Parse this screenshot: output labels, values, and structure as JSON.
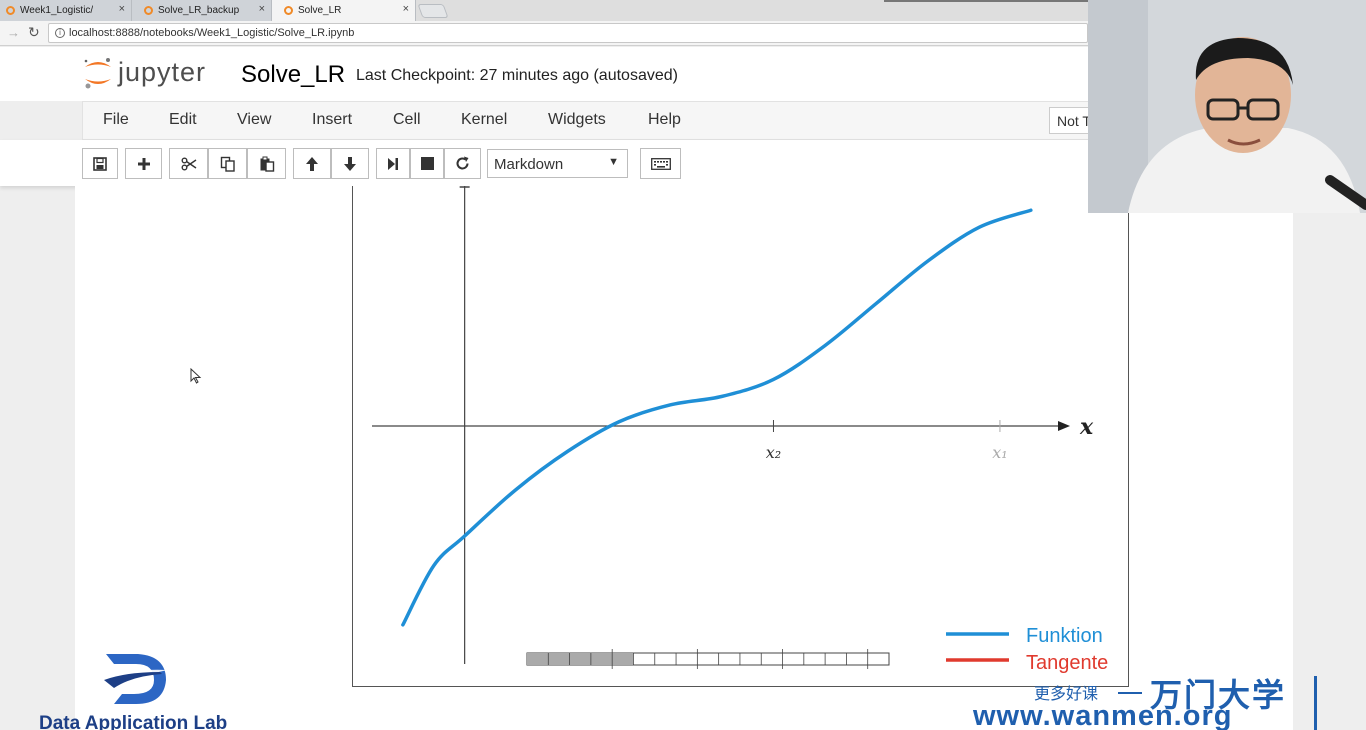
{
  "browser": {
    "tabs": [
      {
        "title": "Week1_Logistic/",
        "close": "×"
      },
      {
        "title": "Solve_LR_backup",
        "close": "×"
      },
      {
        "title": "Solve_LR",
        "close": "×"
      }
    ],
    "url": "localhost:8888/notebooks/Week1_Logistic/Solve_LR.ipynb",
    "forward_icon": "arrow-right-icon",
    "reload_icon": "reload-icon"
  },
  "header": {
    "logo_text": "jupyter",
    "notebook_name": "Solve_LR",
    "checkpoint": "Last Checkpoint: 27 minutes ago (autosaved)"
  },
  "menu": {
    "items": [
      "File",
      "Edit",
      "View",
      "Insert",
      "Cell",
      "Kernel",
      "Widgets",
      "Help"
    ],
    "trusted_label": "Not T"
  },
  "toolbar": {
    "buttons": [
      "save-icon",
      "plus-icon",
      "scissors-icon",
      "copy-icon",
      "paste-icon",
      "arrow-up-icon",
      "arrow-down-icon",
      "step-forward-icon",
      "stop-icon",
      "restart-icon",
      "keyboard-icon"
    ],
    "cell_type": "Markdown"
  },
  "chart_data": {
    "type": "line",
    "title": "",
    "xlabel": "x",
    "ylabel": "",
    "tick_labels": [
      "x₂",
      "x₁"
    ],
    "legend": {
      "placement": "bottom-right",
      "entries": [
        {
          "name": "Funktion",
          "color": "#1f8fd6"
        },
        {
          "name": "Tangente",
          "color": "#e03a2e"
        }
      ]
    },
    "series": [
      {
        "name": "Funktion",
        "color": "#1f8fd6",
        "x": [
          -0.6,
          -0.3,
          0.0,
          0.5,
          1.0,
          1.5,
          2.0,
          2.5,
          3.0,
          3.5,
          4.0,
          4.5,
          5.0,
          5.5
        ],
        "y": [
          -2.35,
          -1.65,
          -1.3,
          -0.75,
          -0.3,
          0.05,
          0.25,
          0.35,
          0.55,
          0.95,
          1.45,
          1.95,
          2.35,
          2.55
        ]
      }
    ],
    "xlim": [
      -0.9,
      5.9
    ],
    "ylim": [
      -2.6,
      2.6
    ]
  },
  "watermark": {
    "lab": "Data Application Lab",
    "cn_tagline": "更多好课",
    "brand": "万门大学",
    "url": "www.wanmen.org"
  }
}
